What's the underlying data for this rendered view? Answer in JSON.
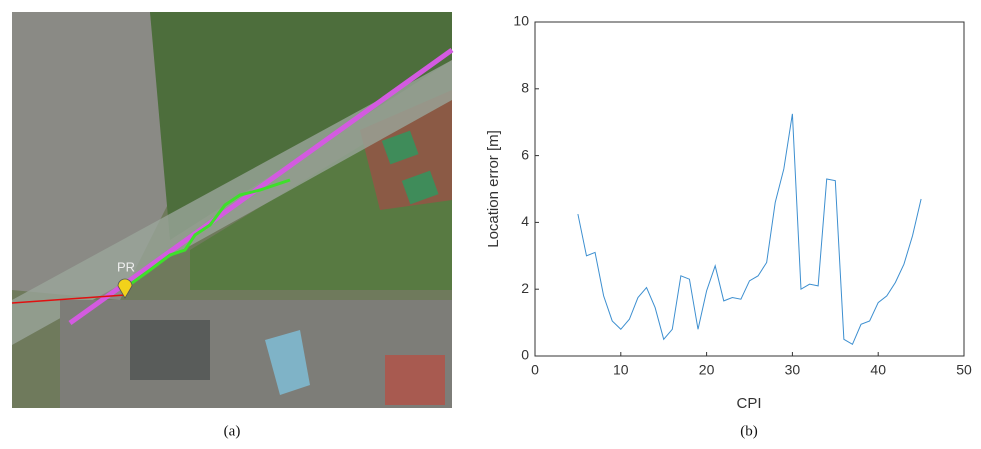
{
  "map": {
    "marker_label": "PR",
    "caption": "(a)"
  },
  "chart_data": {
    "type": "line",
    "caption": "(b)",
    "x_label": "CPI",
    "y_label": "Location error [m]",
    "x": [
      5,
      6,
      7,
      8,
      9,
      10,
      11,
      12,
      13,
      14,
      15,
      16,
      17,
      18,
      19,
      20,
      21,
      22,
      23,
      24,
      25,
      26,
      27,
      28,
      29,
      30,
      31,
      32,
      33,
      34,
      35,
      36,
      37,
      38,
      39,
      40,
      41,
      42,
      43,
      44,
      45
    ],
    "series": [
      {
        "color": "#3d8fd0",
        "values": [
          4.25,
          3.0,
          3.1,
          1.8,
          1.05,
          0.8,
          1.1,
          1.75,
          2.05,
          1.45,
          0.5,
          0.8,
          2.4,
          2.3,
          0.8,
          1.95,
          2.7,
          1.65,
          1.75,
          1.7,
          2.25,
          2.4,
          2.8,
          4.6,
          5.6,
          7.25,
          2.0,
          2.15,
          2.1,
          5.3,
          5.25,
          0.5,
          0.35,
          0.95,
          1.05,
          1.6,
          1.8,
          2.2,
          2.75,
          3.6,
          4.7
        ]
      }
    ],
    "xlim": [
      0,
      50
    ],
    "xticks": [
      0,
      10,
      20,
      30,
      40,
      50
    ],
    "ylim": [
      0,
      10
    ],
    "yticks": [
      0,
      2,
      4,
      6,
      8,
      10
    ]
  }
}
